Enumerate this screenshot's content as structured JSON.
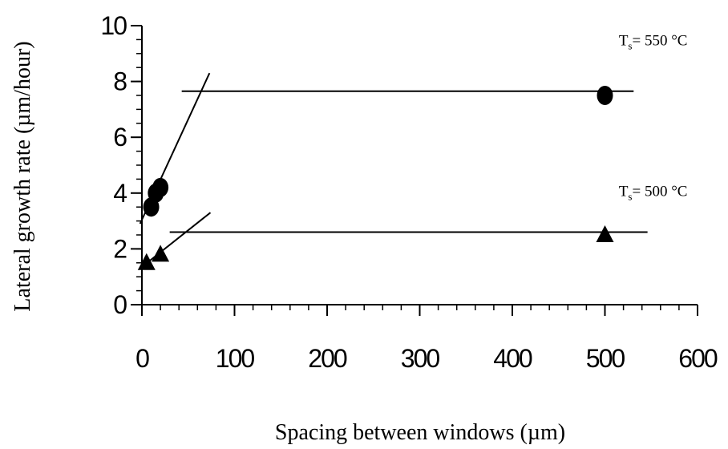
{
  "chart_data": {
    "type": "scatter",
    "x_label": "Spacing between windows (µm)",
    "y_label": "Lateral growth rate (µm/hour)",
    "xlim": [
      0,
      600
    ],
    "xticks": [
      0,
      100,
      200,
      300,
      400,
      500,
      600
    ],
    "x_minor_step": 20,
    "ylim": [
      0,
      10
    ],
    "yticks": [
      0,
      2,
      4,
      6,
      8,
      10
    ],
    "y_minor_step": 0.5,
    "series": [
      {
        "marker": "circle",
        "color": "#000000",
        "x": [
          10,
          15,
          20,
          500
        ],
        "values": [
          3.5,
          4.0,
          4.2,
          7.5
        ]
      },
      {
        "marker": "triangle",
        "color": "#000000",
        "x": [
          5,
          20,
          500
        ],
        "values": [
          1.5,
          1.8,
          2.5
        ]
      }
    ],
    "lines": [
      {
        "x": [
          -2,
          73
        ],
        "values": [
          2.9,
          8.3
        ]
      },
      {
        "x": [
          43,
          531
        ],
        "values": [
          7.65,
          7.65
        ]
      },
      {
        "x": [
          -2,
          74
        ],
        "values": [
          1.3,
          3.3
        ]
      },
      {
        "x": [
          30,
          546
        ],
        "values": [
          2.6,
          2.6
        ]
      }
    ],
    "annotations": [
      {
        "parts": [
          "T",
          "s",
          "= 550 °C"
        ],
        "x": 515,
        "y": 9.3
      },
      {
        "parts": [
          "T",
          "s",
          "= 500 °C"
        ],
        "x": 515,
        "y": 3.9
      }
    ]
  }
}
